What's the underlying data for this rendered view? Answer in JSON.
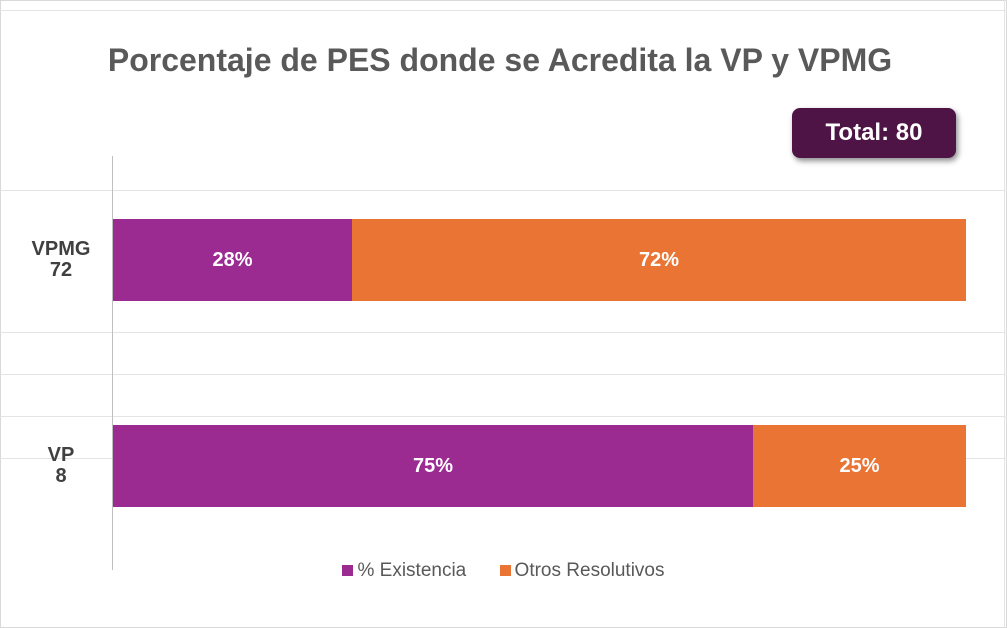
{
  "chart_data": {
    "type": "bar",
    "orientation": "horizontal",
    "stacked": true,
    "title": "Porcentaje  de PES donde se Acredita la VP y VPMG",
    "badge": "Total: 80",
    "categories": [
      {
        "name": "VPMG",
        "count": "72"
      },
      {
        "name": "VP",
        "count": "8"
      }
    ],
    "series": [
      {
        "name": "% Existencia",
        "color": "#9b2a91",
        "values": [
          28,
          75
        ],
        "labels": [
          "28%",
          "75%"
        ]
      },
      {
        "name": "Otros Resolutivos",
        "color": "#ea7434",
        "values": [
          72,
          25
        ],
        "labels": [
          "72%",
          "25%"
        ]
      }
    ],
    "xlim": [
      0,
      100
    ],
    "legend_position": "bottom"
  }
}
